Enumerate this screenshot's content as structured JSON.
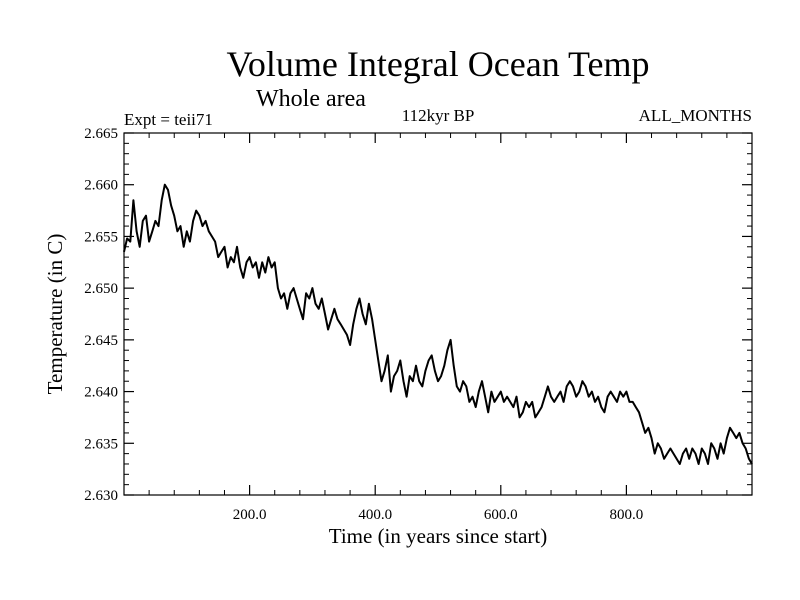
{
  "chart_data": {
    "type": "line",
    "title": "Volume Integral Ocean Temp",
    "subtitle": "Whole area",
    "left_label": "Expt = teii71",
    "center_label": "112kyr BP",
    "right_label": "ALL_MONTHS",
    "xlabel": "Time (in years since start)",
    "ylabel": "Temperature (in C)",
    "xlim": [
      0,
      1000
    ],
    "ylim": [
      2.63,
      2.665
    ],
    "xticks": [
      200,
      400,
      600,
      800
    ],
    "xtick_labels": [
      "200.0",
      "400.0",
      "600.0",
      "800.0"
    ],
    "yticks": [
      2.63,
      2.635,
      2.64,
      2.645,
      2.65,
      2.655,
      2.66,
      2.665
    ],
    "ytick_labels": [
      "2.630",
      "2.635",
      "2.640",
      "2.645",
      "2.650",
      "2.655",
      "2.660",
      "2.665"
    ],
    "grid": false,
    "line_color": "#000000",
    "series": [
      {
        "x": [
          0,
          5,
          10,
          15,
          20,
          25,
          30,
          35,
          40,
          45,
          50,
          55,
          60,
          65,
          70,
          75,
          80,
          85,
          90,
          95,
          100,
          105,
          110,
          115,
          120,
          125,
          130,
          135,
          140,
          145,
          150,
          155,
          160,
          165,
          170,
          175,
          180,
          185,
          190,
          195,
          200,
          205,
          210,
          215,
          220,
          225,
          230,
          235,
          240,
          245,
          250,
          255,
          260,
          265,
          270,
          275,
          280,
          285,
          290,
          295,
          300,
          305,
          310,
          315,
          320,
          325,
          330,
          335,
          340,
          345,
          350,
          355,
          360,
          365,
          370,
          375,
          380,
          385,
          390,
          395,
          400,
          405,
          410,
          415,
          420,
          425,
          430,
          435,
          440,
          445,
          450,
          455,
          460,
          465,
          470,
          475,
          480,
          485,
          490,
          495,
          500,
          505,
          510,
          515,
          520,
          525,
          530,
          535,
          540,
          545,
          550,
          555,
          560,
          565,
          570,
          575,
          580,
          585,
          590,
          595,
          600,
          605,
          610,
          615,
          620,
          625,
          630,
          635,
          640,
          645,
          650,
          655,
          660,
          665,
          670,
          675,
          680,
          685,
          690,
          695,
          700,
          705,
          710,
          715,
          720,
          725,
          730,
          735,
          740,
          745,
          750,
          755,
          760,
          765,
          770,
          775,
          780,
          785,
          790,
          795,
          800,
          805,
          810,
          815,
          820,
          825,
          830,
          835,
          840,
          845,
          850,
          855,
          860,
          865,
          870,
          875,
          880,
          885,
          890,
          895,
          900,
          905,
          910,
          915,
          920,
          925,
          930,
          935,
          940,
          945,
          950,
          955,
          960,
          965,
          970,
          975,
          980,
          985,
          990,
          995,
          1000
        ],
        "y": [
          2.6535,
          2.6548,
          2.6545,
          2.6585,
          2.6555,
          2.654,
          2.6565,
          2.657,
          2.6545,
          2.6555,
          2.6565,
          2.656,
          2.6585,
          2.66,
          2.6595,
          2.658,
          2.657,
          2.6555,
          2.656,
          2.654,
          2.6555,
          2.6545,
          2.6565,
          2.6575,
          2.657,
          2.656,
          2.6565,
          2.6555,
          2.655,
          2.6545,
          2.653,
          2.6535,
          2.654,
          2.652,
          2.653,
          2.6525,
          2.654,
          2.652,
          2.651,
          2.6525,
          2.653,
          2.652,
          2.6525,
          2.651,
          2.6525,
          2.6515,
          2.653,
          2.652,
          2.6525,
          2.65,
          2.649,
          2.6495,
          2.648,
          2.6495,
          2.65,
          2.649,
          2.648,
          2.647,
          2.6495,
          2.649,
          2.65,
          2.6485,
          2.648,
          2.649,
          2.6475,
          2.646,
          2.647,
          2.648,
          2.647,
          2.6465,
          2.646,
          2.6455,
          2.6445,
          2.6465,
          2.648,
          2.649,
          2.6475,
          2.6465,
          2.6485,
          2.647,
          2.645,
          2.643,
          2.641,
          2.642,
          2.6435,
          2.64,
          2.6415,
          2.642,
          2.643,
          2.641,
          2.6395,
          2.6415,
          2.641,
          2.6425,
          2.641,
          2.6405,
          2.642,
          2.643,
          2.6435,
          2.642,
          2.641,
          2.6415,
          2.6425,
          2.644,
          2.645,
          2.6425,
          2.6405,
          2.64,
          2.641,
          2.6405,
          2.639,
          2.6395,
          2.6385,
          2.64,
          2.641,
          2.6395,
          2.638,
          2.64,
          2.639,
          2.6395,
          2.64,
          2.639,
          2.6395,
          2.639,
          2.6385,
          2.6395,
          2.6375,
          2.638,
          2.639,
          2.6385,
          2.639,
          2.6375,
          2.638,
          2.6385,
          2.6395,
          2.6405,
          2.6395,
          2.639,
          2.6395,
          2.64,
          2.639,
          2.6405,
          2.641,
          2.6405,
          2.6395,
          2.64,
          2.641,
          2.6405,
          2.6395,
          2.64,
          2.639,
          2.6395,
          2.6385,
          2.638,
          2.6395,
          2.64,
          2.6395,
          2.639,
          2.64,
          2.6395,
          2.64,
          2.639,
          2.639,
          2.6385,
          2.638,
          2.637,
          2.636,
          2.6365,
          2.6355,
          2.634,
          2.635,
          2.6345,
          2.6335,
          2.634,
          2.6345,
          2.634,
          2.6335,
          2.633,
          2.634,
          2.6345,
          2.6335,
          2.6345,
          2.634,
          2.633,
          2.6345,
          2.634,
          2.633,
          2.635,
          2.6345,
          2.6335,
          2.635,
          2.634,
          2.6355,
          2.6365,
          2.636,
          2.6355,
          2.636,
          2.635,
          2.6345,
          2.6335,
          2.633
        ]
      }
    ]
  }
}
